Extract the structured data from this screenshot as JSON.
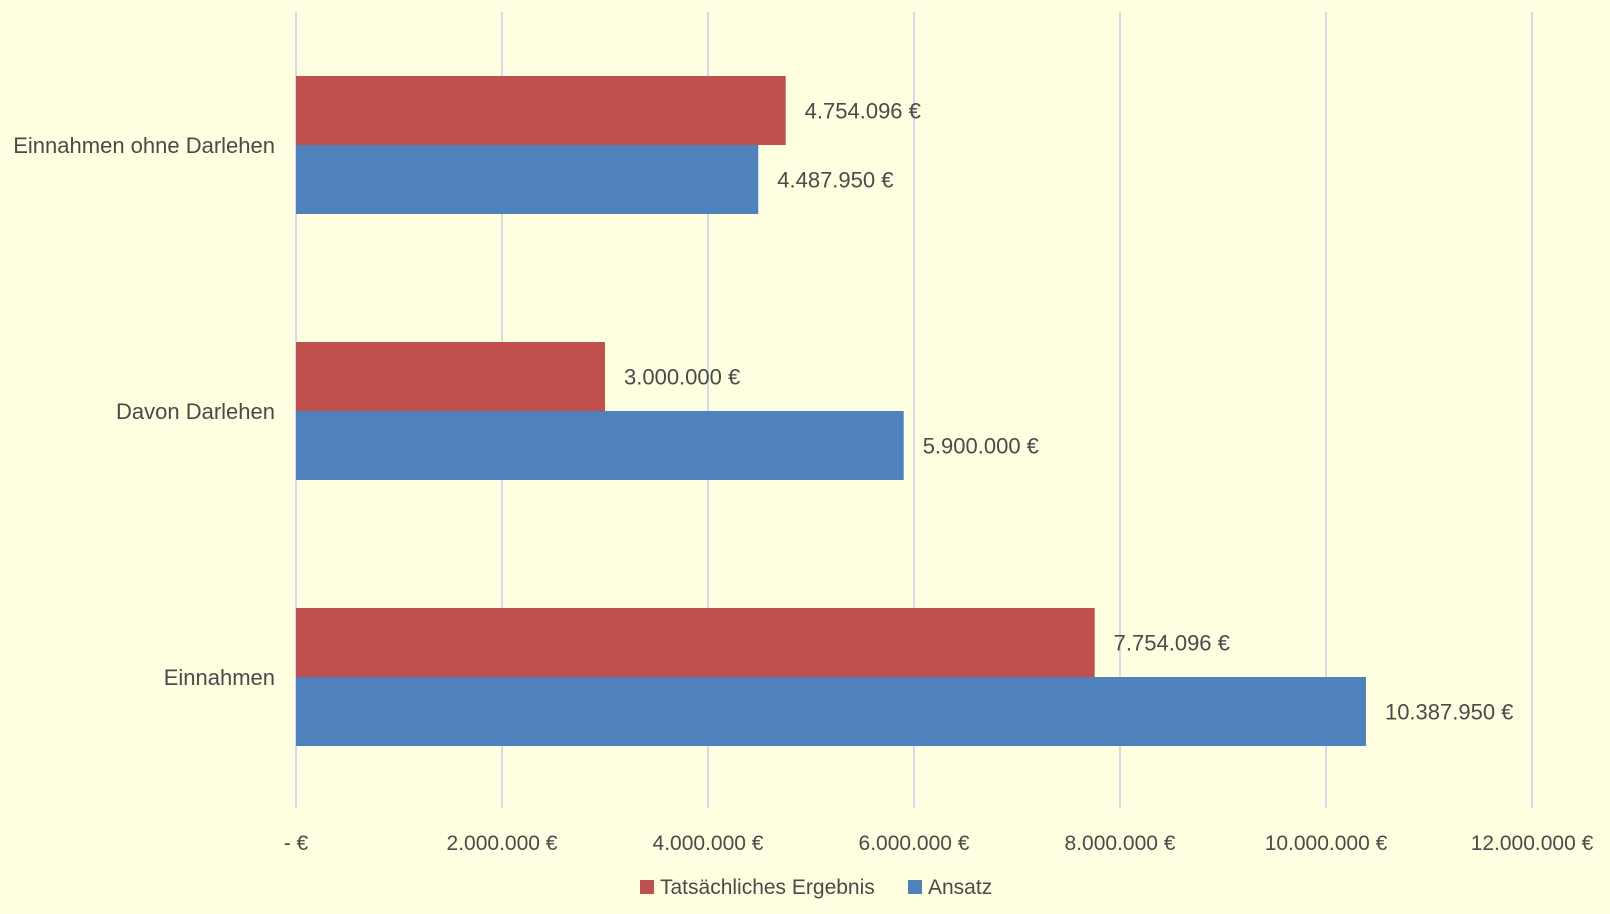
{
  "chart_data": {
    "type": "bar",
    "orientation": "horizontal",
    "categories": [
      "Einnahmen ohne Darlehen",
      "Davon Darlehen",
      "Einnahmen"
    ],
    "series": [
      {
        "name": "Tatsächliches Ergebnis",
        "color": "#c0504d",
        "values": [
          4754096,
          3000000,
          7754096
        ],
        "labels": [
          "4.754.096 €",
          "3.000.000 €",
          "7.754.096 €"
        ]
      },
      {
        "name": "Ansatz",
        "color": "#4f81bd",
        "values": [
          4487950,
          5900000,
          10387950
        ],
        "labels": [
          "4.487.950 €",
          "5.900.000 €",
          "10.387.950 €"
        ]
      }
    ],
    "xlim": [
      0,
      12000000
    ],
    "ticks": [
      0,
      2000000,
      4000000,
      6000000,
      8000000,
      10000000,
      12000000
    ],
    "tick_labels": [
      "-  €",
      "2.000.000 €",
      "4.000.000 €",
      "6.000.000 €",
      "8.000.000 €",
      "10.000.000 €",
      "12.000.000 €"
    ],
    "grid": true,
    "grid_color": "#d9d9e8",
    "legend_position": "bottom",
    "background": "#fefee0"
  }
}
